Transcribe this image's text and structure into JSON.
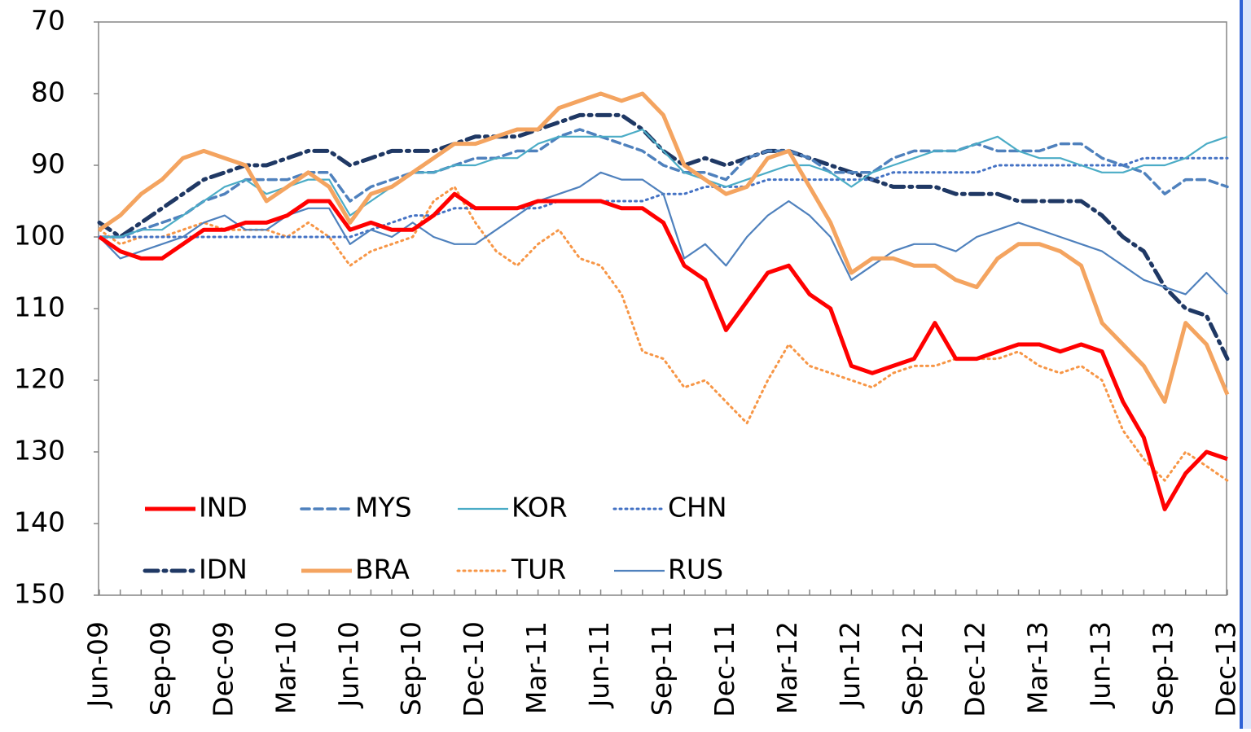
{
  "chart_data": {
    "type": "line",
    "categories": [
      "Jun-09",
      null,
      null,
      "Sep-09",
      null,
      null,
      "Dec-09",
      null,
      null,
      "Mar-10",
      null,
      null,
      "Jun-10",
      null,
      null,
      "Sep-10",
      null,
      null,
      "Dec-10",
      null,
      null,
      "Mar-11",
      null,
      null,
      "Jun-11",
      null,
      null,
      "Sep-11",
      null,
      null,
      "Dec-11",
      null,
      null,
      "Mar-12",
      null,
      null,
      "Jun-12",
      null,
      null,
      "Sep-12",
      null,
      null,
      "Dec-12",
      null,
      null,
      "Mar-13",
      null,
      null,
      "Jun-13",
      null,
      null,
      "Sep-13",
      null,
      null,
      "Dec-13"
    ],
    "ylim": [
      70,
      150
    ],
    "y_inverted": true,
    "yticks": [
      70,
      80,
      90,
      100,
      110,
      120,
      130,
      140,
      150
    ],
    "grid": false,
    "legend": "lower left",
    "series": [
      {
        "name": "IND",
        "color": "#ff0000",
        "style": "thick",
        "values": [
          100,
          102,
          103,
          103,
          101,
          99,
          99,
          98,
          98,
          97,
          95,
          95,
          99,
          98,
          99,
          99,
          97,
          94,
          96,
          96,
          96,
          95,
          95,
          95,
          95,
          96,
          96,
          98,
          104,
          106,
          113,
          109,
          105,
          104,
          108,
          110,
          118,
          119,
          118,
          117,
          112,
          117,
          117,
          116,
          115,
          115,
          116,
          115,
          116,
          123,
          128,
          138,
          133,
          130,
          131
        ]
      },
      {
        "name": "MYS",
        "color": "#4f81bd",
        "style": "dashed",
        "values": [
          100,
          100,
          99,
          98,
          97,
          95,
          94,
          92,
          92,
          92,
          91,
          91,
          95,
          93,
          92,
          91,
          91,
          90,
          89,
          89,
          88,
          88,
          86,
          85,
          86,
          87,
          88,
          90,
          91,
          91,
          92,
          89,
          88,
          88,
          89,
          91,
          91,
          91,
          89,
          88,
          88,
          88,
          87,
          88,
          88,
          88,
          87,
          87,
          89,
          90,
          91,
          94,
          92,
          92,
          93
        ]
      },
      {
        "name": "KOR",
        "color": "#4bacc6",
        "style": "solid",
        "values": [
          100,
          100,
          99,
          99,
          97,
          95,
          93,
          92,
          94,
          93,
          92,
          92,
          97,
          95,
          93,
          91,
          91,
          90,
          90,
          89,
          89,
          87,
          86,
          86,
          86,
          86,
          85,
          88,
          91,
          92,
          93,
          92,
          91,
          90,
          90,
          91,
          93,
          91,
          90,
          89,
          88,
          88,
          87,
          86,
          88,
          89,
          89,
          90,
          91,
          91,
          90,
          90,
          89,
          87,
          86
        ]
      },
      {
        "name": "CHN",
        "color": "#4472c4",
        "style": "dotted",
        "values": [
          100,
          100,
          100,
          100,
          100,
          100,
          100,
          100,
          100,
          100,
          100,
          100,
          100,
          99,
          98,
          97,
          97,
          96,
          96,
          96,
          96,
          96,
          95,
          95,
          95,
          95,
          95,
          94,
          94,
          93,
          93,
          93,
          92,
          92,
          92,
          92,
          92,
          92,
          91,
          91,
          91,
          91,
          91,
          90,
          90,
          90,
          90,
          90,
          90,
          90,
          89,
          89,
          89,
          89,
          89
        ]
      },
      {
        "name": "IDN",
        "color": "#1f3864",
        "style": "dash-dot",
        "values": [
          98,
          100,
          98,
          96,
          94,
          92,
          91,
          90,
          90,
          89,
          88,
          88,
          90,
          89,
          88,
          88,
          88,
          87,
          86,
          86,
          86,
          85,
          84,
          83,
          83,
          83,
          85,
          88,
          90,
          89,
          90,
          89,
          88,
          88,
          89,
          90,
          91,
          92,
          93,
          93,
          93,
          94,
          94,
          94,
          95,
          95,
          95,
          95,
          97,
          100,
          102,
          107,
          110,
          111,
          117
        ]
      },
      {
        "name": "BRA",
        "color": "#f4a460",
        "style": "thick",
        "values": [
          99,
          97,
          94,
          92,
          89,
          88,
          89,
          90,
          95,
          93,
          91,
          93,
          98,
          94,
          93,
          91,
          89,
          87,
          87,
          86,
          85,
          85,
          82,
          81,
          80,
          81,
          80,
          83,
          90,
          92,
          94,
          93,
          89,
          88,
          93,
          98,
          105,
          103,
          103,
          104,
          104,
          106,
          107,
          103,
          101,
          101,
          102,
          104,
          112,
          115,
          118,
          123,
          112,
          115,
          122
        ]
      },
      {
        "name": "TUR",
        "color": "#f79646",
        "style": "dotted",
        "values": [
          99,
          101,
          100,
          100,
          99,
          98,
          99,
          99,
          99,
          100,
          98,
          100,
          104,
          102,
          101,
          100,
          95,
          93,
          98,
          102,
          104,
          101,
          99,
          103,
          104,
          108,
          116,
          117,
          121,
          120,
          123,
          126,
          120,
          115,
          118,
          119,
          120,
          121,
          119,
          118,
          118,
          117,
          117,
          117,
          116,
          118,
          119,
          118,
          120,
          127,
          131,
          134,
          130,
          132,
          134
        ]
      },
      {
        "name": "RUS",
        "color": "#4f81bd",
        "style": "solid",
        "values": [
          100,
          103,
          102,
          101,
          100,
          98,
          97,
          99,
          99,
          97,
          96,
          96,
          101,
          99,
          100,
          98,
          100,
          101,
          101,
          99,
          97,
          95,
          94,
          93,
          91,
          92,
          92,
          94,
          103,
          101,
          104,
          100,
          97,
          95,
          97,
          100,
          106,
          104,
          102,
          101,
          101,
          102,
          100,
          99,
          98,
          99,
          100,
          101,
          102,
          104,
          106,
          107,
          108,
          105,
          108
        ]
      }
    ]
  }
}
